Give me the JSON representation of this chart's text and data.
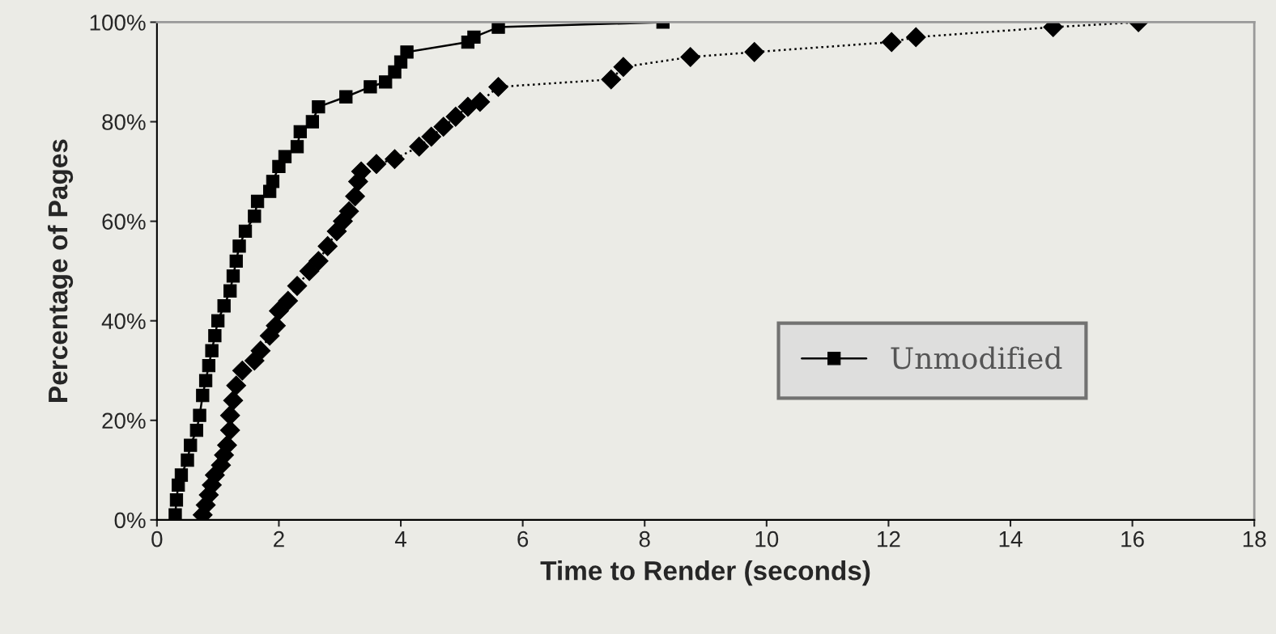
{
  "chart_data": {
    "type": "line",
    "xlabel": "Time to Render (seconds)",
    "ylabel": "Percentage of Pages",
    "xlim": [
      0,
      18
    ],
    "xticks": [
      0,
      2,
      4,
      6,
      8,
      10,
      12,
      14,
      16,
      18
    ],
    "ylim": [
      0,
      100
    ],
    "yticks": [
      {
        "value": 0,
        "label": "0%"
      },
      {
        "value": 20,
        "label": "20%"
      },
      {
        "value": 40,
        "label": "40%"
      },
      {
        "value": 60,
        "label": "60%"
      },
      {
        "value": 80,
        "label": "80%"
      },
      {
        "value": 100,
        "label": "100%"
      }
    ],
    "grid": false,
    "legend": "right",
    "series": [
      {
        "name": "Unmodified",
        "color": "#000000",
        "marker": "square",
        "line_style": "solid",
        "x": [
          0.3,
          0.32,
          0.35,
          0.4,
          0.5,
          0.55,
          0.65,
          0.7,
          0.75,
          0.8,
          0.85,
          0.9,
          0.95,
          1.0,
          1.1,
          1.2,
          1.25,
          1.3,
          1.35,
          1.45,
          1.6,
          1.65,
          1.85,
          1.9,
          2.0,
          2.1,
          2.3,
          2.35,
          2.55,
          2.65,
          3.1,
          3.5,
          3.75,
          3.9,
          4.0,
          4.1,
          5.1,
          5.2,
          5.6,
          8.3
        ],
        "values": [
          1,
          4,
          7,
          9,
          12,
          15,
          18,
          21,
          25,
          28,
          31,
          34,
          37,
          40,
          43,
          46,
          49,
          52,
          55,
          58,
          61,
          64,
          66,
          68,
          71,
          73,
          75,
          78,
          80,
          83,
          85,
          87,
          88,
          90,
          92,
          94,
          96,
          97,
          99,
          100
        ]
      },
      {
        "color": "#000000",
        "marker": "diamond",
        "line_style": "dotted",
        "x": [
          0.75,
          0.8,
          0.85,
          0.9,
          0.95,
          1.05,
          1.1,
          1.15,
          1.2,
          1.2,
          1.25,
          1.3,
          1.4,
          1.6,
          1.7,
          1.85,
          1.95,
          2.0,
          2.15,
          2.3,
          2.5,
          2.65,
          2.8,
          2.95,
          3.05,
          3.15,
          3.25,
          3.3,
          3.35,
          3.6,
          3.9,
          4.3,
          4.5,
          4.7,
          4.9,
          5.1,
          5.3,
          5.6,
          7.45,
          7.65,
          8.75,
          9.8,
          12.05,
          12.45,
          14.7,
          16.1
        ],
        "values": [
          1,
          3,
          5,
          7,
          9,
          11,
          13,
          15,
          18,
          21,
          24,
          27,
          30,
          32,
          34,
          37,
          39,
          42,
          44,
          47,
          50,
          52,
          55,
          58,
          60,
          62,
          65,
          68,
          70,
          71.5,
          72.5,
          75,
          77,
          79,
          81,
          83,
          84,
          87,
          88.5,
          91,
          93,
          94,
          96,
          97,
          99,
          100
        ]
      }
    ]
  }
}
